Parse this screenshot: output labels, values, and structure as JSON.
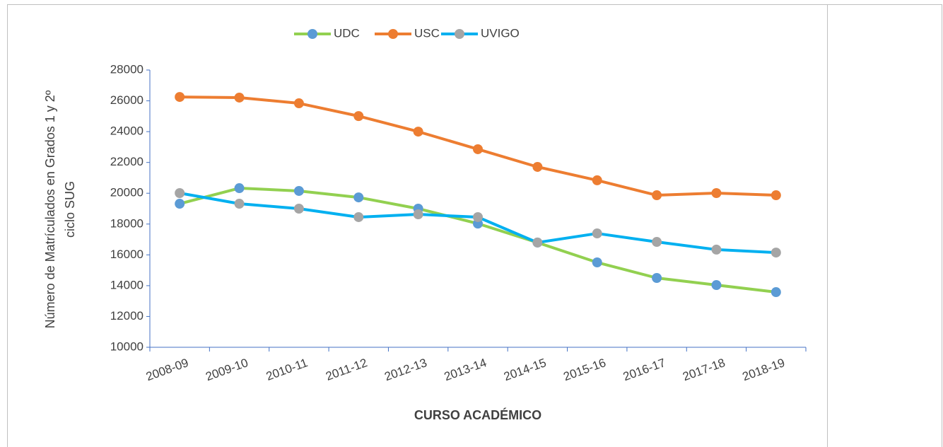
{
  "chart_data": {
    "type": "line",
    "x_label": "CURSO ACADÉMICO",
    "y_label_lines": [
      "Número de Matrículados  en Grados 1 y 2º",
      "ciclo SUG"
    ],
    "categories": [
      "2008-09",
      "2009-10",
      "2010-11",
      "2011-12",
      "2012-13",
      "2013-14",
      "2014-15",
      "2015-16",
      "2016-17",
      "2017-18",
      "2018-19"
    ],
    "series": [
      {
        "name": "UDC",
        "color": "#92d050",
        "marker_color": "#5b9bd5",
        "values": [
          19320,
          20330,
          20150,
          19730,
          19000,
          18030,
          16800,
          15510,
          14500,
          14040,
          13580
        ]
      },
      {
        "name": "USC",
        "color": "#ed7d31",
        "marker_color": "#ed7d31",
        "values": [
          26250,
          26210,
          25840,
          25010,
          24000,
          22860,
          21710,
          20840,
          19870,
          20010,
          19870
        ]
      },
      {
        "name": "UVIGO",
        "color": "#00b0f0",
        "marker_color": "#a5a5a5",
        "values": [
          20010,
          19320,
          19000,
          18450,
          18630,
          18450,
          16800,
          17390,
          16840,
          16340,
          16150
        ]
      }
    ],
    "ylim": [
      10000,
      28000
    ],
    "yticks": [
      10000,
      12000,
      14000,
      16000,
      18000,
      20000,
      22000,
      24000,
      26000,
      28000
    ],
    "axis_color": "#4472c4",
    "grid": false,
    "legend": "top"
  }
}
